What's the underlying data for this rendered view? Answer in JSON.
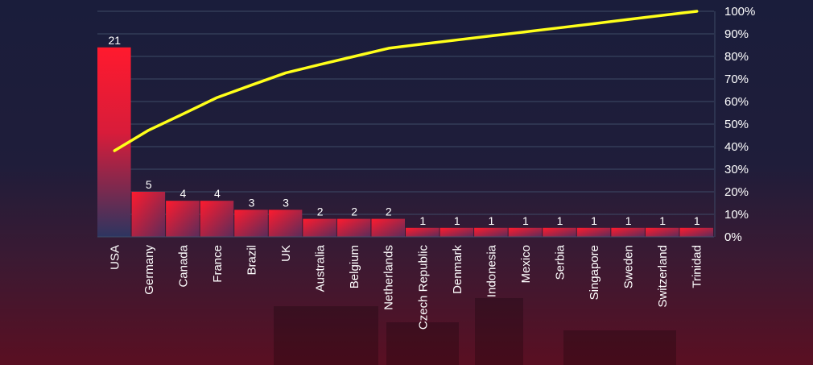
{
  "chart_data": {
    "type": "bar",
    "categories": [
      "USA",
      "Germany",
      "Canada",
      "France",
      "Brazil",
      "UK",
      "Australia",
      "Belgium",
      "Netherlands",
      "Czech Republic",
      "Denmark",
      "Indonesia",
      "Mexico",
      "Serbia",
      "Singapore",
      "Sweden",
      "Switzerland",
      "Trinidad"
    ],
    "series": [
      {
        "values": [
          21,
          5,
          4,
          4,
          3,
          3,
          2,
          2,
          2,
          1,
          1,
          1,
          1,
          1,
          1,
          1,
          1,
          1
        ]
      },
      {
        "type": "line",
        "axis": "right",
        "values": [
          38.2,
          47.3,
          54.5,
          61.8,
          67.3,
          72.7,
          76.4,
          80.0,
          83.6,
          85.5,
          87.3,
          89.1,
          90.9,
          92.7,
          94.5,
          96.4,
          98.2,
          100.0
        ]
      }
    ],
    "y_right_ticks": [
      "0%",
      "10%",
      "20%",
      "30%",
      "40%",
      "50%",
      "60%",
      "70%",
      "80%",
      "90%",
      "100%"
    ],
    "ylim": [
      0,
      25
    ],
    "y_right_lim": [
      0,
      100
    ],
    "grid": true,
    "colors": {
      "bar_top": "#ff1a2e",
      "bar_bottom": "#2d3560",
      "line": "#ffff1a",
      "grid": "#3d4a66",
      "text": "#ffffff"
    }
  }
}
